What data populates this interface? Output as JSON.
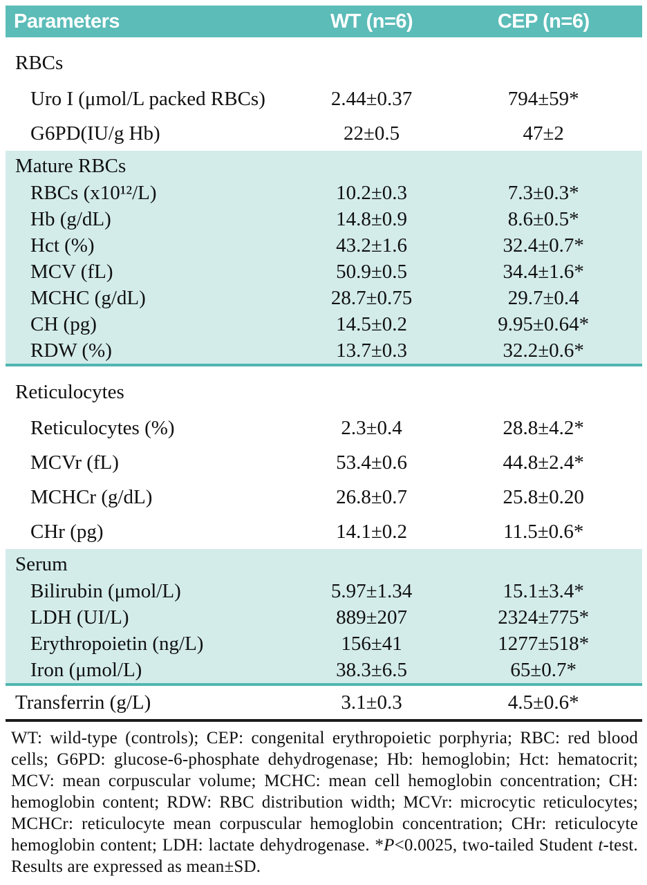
{
  "colors": {
    "header_teal": "#5bbcb8",
    "section_teal": "#d3ecea",
    "divider_teal": "#4fb5b1",
    "rule_black": "#1c1c1c"
  },
  "table": {
    "header": {
      "parameters": "Parameters",
      "wt": "WT (n=6)",
      "cep": "CEP (n=6)"
    },
    "sections": [
      {
        "name": "RBCs",
        "shaded": false,
        "rows": [
          {
            "param": "Uro I (μmol/L packed RBCs)",
            "wt": "2.44±0.37",
            "cep": "794±59*"
          },
          {
            "param": "G6PD(IU/g Hb)",
            "wt": "22±0.5",
            "cep": "47±2"
          }
        ]
      },
      {
        "name": "Mature RBCs",
        "shaded": true,
        "rows": [
          {
            "param": "RBCs (x10¹²/L)",
            "wt": "10.2±0.3",
            "cep": "7.3±0.3*"
          },
          {
            "param": "Hb (g/dL)",
            "wt": "14.8±0.9",
            "cep": "8.6±0.5*"
          },
          {
            "param": "Hct (%)",
            "wt": "43.2±1.6",
            "cep": "32.4±0.7*"
          },
          {
            "param": "MCV (fL)",
            "wt": "50.9±0.5",
            "cep": "34.4±1.6*"
          },
          {
            "param": "MCHC (g/dL)",
            "wt": "28.7±0.75",
            "cep": "29.7±0.4"
          },
          {
            "param": "CH (pg)",
            "wt": "14.5±0.2",
            "cep": "9.95±0.64*"
          },
          {
            "param": "RDW (%)",
            "wt": "13.7±0.3",
            "cep": "32.2±0.6*"
          }
        ]
      },
      {
        "name": "Reticulocytes",
        "shaded": false,
        "rows": [
          {
            "param": "Reticulocytes (%)",
            "wt": "2.3±0.4",
            "cep": "28.8±4.2*"
          },
          {
            "param": "MCVr (fL)",
            "wt": "53.4±0.6",
            "cep": "44.8±2.4*"
          },
          {
            "param": "MCHCr (g/dL)",
            "wt": "26.8±0.7",
            "cep": "25.8±0.20"
          },
          {
            "param": "CHr (pg)",
            "wt": "14.1±0.2",
            "cep": "11.5±0.6*"
          }
        ]
      },
      {
        "name": "Serum",
        "shaded": true,
        "rows": [
          {
            "param": "Bilirubin (μmol/L)",
            "wt": "5.97±1.34",
            "cep": "15.1±3.4*"
          },
          {
            "param": "LDH (UI/L)",
            "wt": "889±207",
            "cep": "2324±775*"
          },
          {
            "param": "Erythropoietin (ng/L)",
            "wt": "156±41",
            "cep": "1277±518*"
          },
          {
            "param": "Iron (μmol/L)",
            "wt": "38.3±6.5",
            "cep": "65±0.7*"
          }
        ]
      }
    ],
    "final_row": {
      "param": "Transferrin (g/L)",
      "wt": "3.1±0.3",
      "cep": "4.5±0.6*"
    }
  },
  "footnote": {
    "before_p": "WT: wild-type (controls); CEP: congenital erythropoietic porphyria; RBC: red blood cells; G6PD: glucose-6-phosphate dehydrogenase; Hb: hemoglobin; Hct: hematocrit; MCV: mean corpuscular volume; MCHC: mean cell hemoglobin concentration; CH: hemoglobin content; RDW: RBC distribution width; MCVr: microcytic reticulocytes; MCHCr: reticulocyte mean corpuscular hemoglobin concentration; CHr: reticulocyte hemoglobin content; LDH: lactate dehydrogenase. *",
    "p_symbol": "P",
    "between": "<0.0025, two-tailed Student ",
    "t_symbol": "t",
    "after_t": "-test. Results are expressed as mean±SD."
  }
}
